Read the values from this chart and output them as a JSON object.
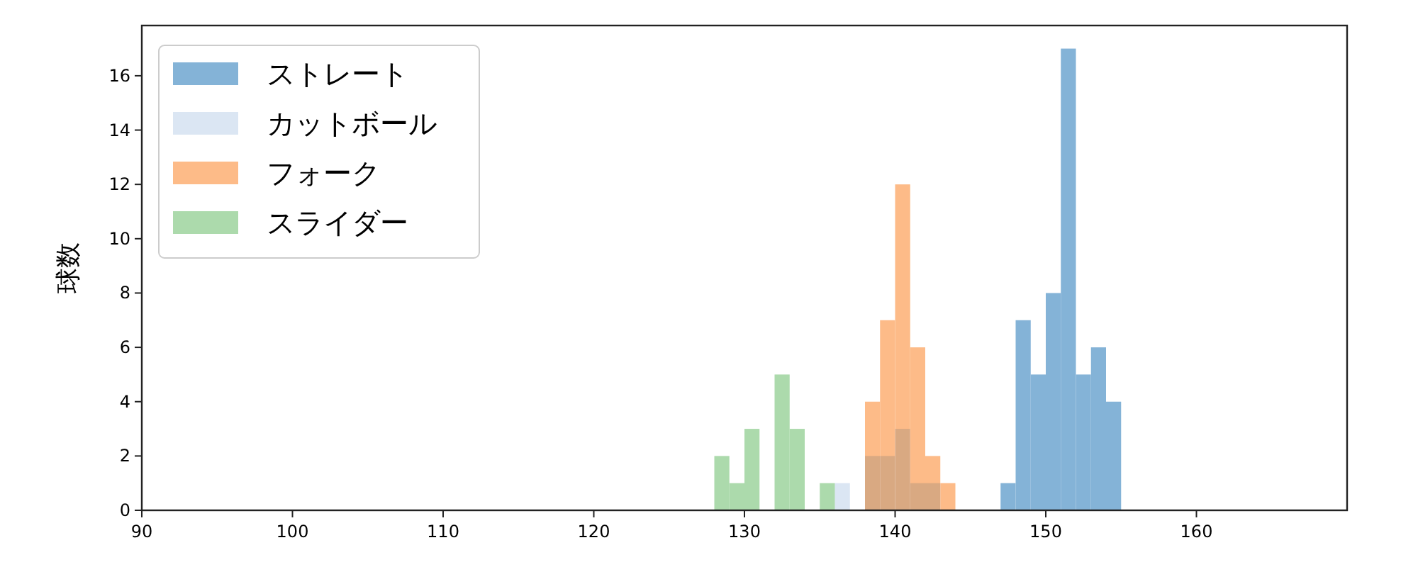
{
  "chart_data": {
    "type": "histogram",
    "ylabel": "球数",
    "bins": [
      128,
      129,
      130,
      131,
      132,
      133,
      134,
      135,
      136,
      137,
      138,
      139,
      140,
      141,
      142,
      143,
      144,
      145,
      146,
      147,
      148,
      149,
      150,
      151,
      152,
      153,
      154,
      155
    ],
    "series": [
      {
        "name": "ストレート",
        "color": "#84b3d7",
        "values": [
          0,
          0,
          0,
          0,
          0,
          0,
          0,
          0,
          0,
          0,
          0,
          0,
          0,
          0,
          0,
          0,
          0,
          0,
          0,
          1,
          7,
          5,
          8,
          17,
          5,
          6,
          4
        ]
      },
      {
        "name": "カットボール",
        "color": "#dbe6f3",
        "values": [
          0,
          0,
          0,
          0,
          0,
          0,
          0,
          0,
          1,
          0,
          2,
          2,
          3,
          1,
          1,
          0,
          0,
          0,
          0,
          0,
          0,
          0,
          0,
          0,
          0,
          0,
          0
        ]
      },
      {
        "name": "フォーク",
        "color": "#fdbb88",
        "values": [
          0,
          0,
          0,
          0,
          0,
          0,
          0,
          0,
          0,
          0,
          4,
          7,
          12,
          6,
          2,
          1,
          0,
          0,
          0,
          0,
          0,
          0,
          0,
          0,
          0,
          0,
          0
        ]
      },
      {
        "name": "スライダー",
        "color": "#acdaac",
        "values": [
          2,
          1,
          3,
          0,
          5,
          3,
          0,
          1,
          0,
          0,
          0,
          0,
          0,
          0,
          0,
          0,
          0,
          0,
          0,
          0,
          0,
          0,
          0,
          0,
          0,
          0,
          0
        ]
      }
    ],
    "xlim": [
      90,
      170
    ],
    "xticks": [
      90,
      100,
      110,
      120,
      130,
      140,
      150,
      160
    ],
    "ylim": [
      0,
      17.85
    ],
    "yticks": [
      0,
      2,
      4,
      6,
      8,
      10,
      12,
      14,
      16
    ],
    "legend": "top left",
    "grid": false
  }
}
